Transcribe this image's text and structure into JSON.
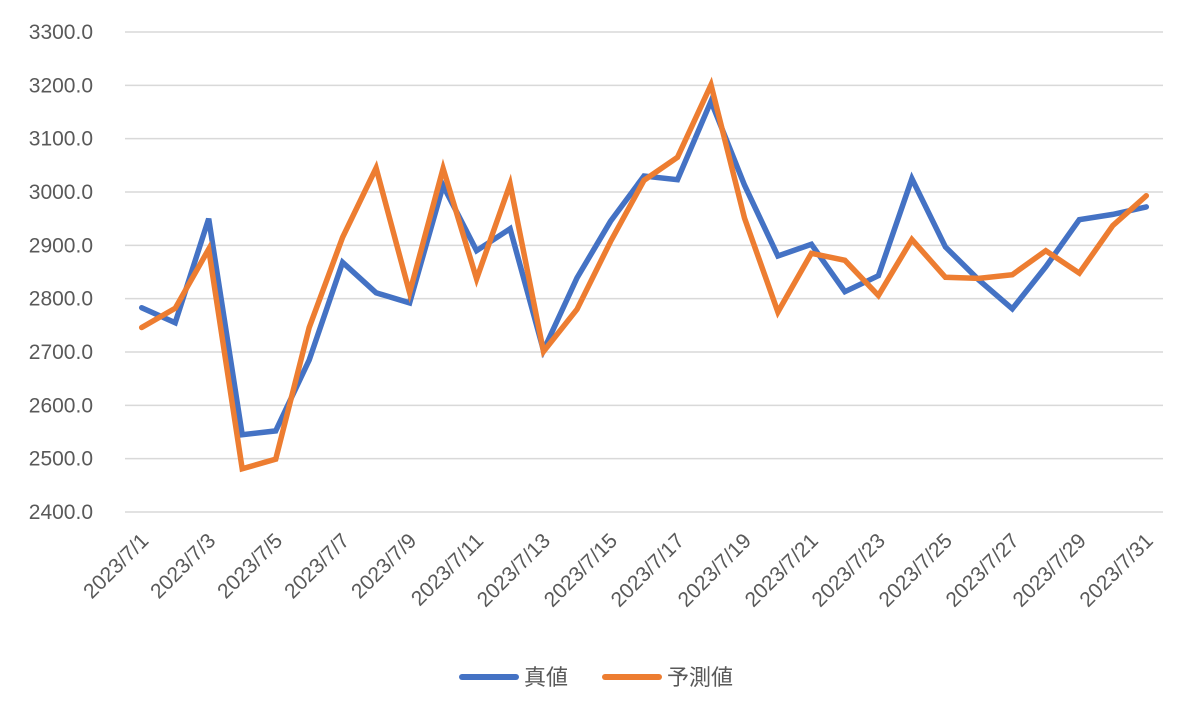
{
  "chart_data": {
    "type": "line",
    "title": "",
    "xlabel": "",
    "ylabel": "",
    "ylim": [
      2400,
      3300
    ],
    "yticks": [
      "2400.0",
      "2500.0",
      "2600.0",
      "2700.0",
      "2800.0",
      "2900.0",
      "3000.0",
      "3100.0",
      "3200.0",
      "3300.0"
    ],
    "categories": [
      "2023/7/1",
      "2023/7/2",
      "2023/7/3",
      "2023/7/4",
      "2023/7/5",
      "2023/7/6",
      "2023/7/7",
      "2023/7/8",
      "2023/7/9",
      "2023/7/10",
      "2023/7/11",
      "2023/7/12",
      "2023/7/13",
      "2023/7/14",
      "2023/7/15",
      "2023/7/16",
      "2023/7/17",
      "2023/7/18",
      "2023/7/19",
      "2023/7/20",
      "2023/7/21",
      "2023/7/22",
      "2023/7/23",
      "2023/7/24",
      "2023/7/25",
      "2023/7/26",
      "2023/7/27",
      "2023/7/28",
      "2023/7/29",
      "2023/7/30",
      "2023/7/31"
    ],
    "xtick_labels": [
      "2023/7/1",
      "2023/7/3",
      "2023/7/5",
      "2023/7/7",
      "2023/7/9",
      "2023/7/11",
      "2023/7/13",
      "2023/7/15",
      "2023/7/17",
      "2023/7/19",
      "2023/7/21",
      "2023/7/23",
      "2023/7/25",
      "2023/7/27",
      "2023/7/29",
      "2023/7/31"
    ],
    "series": [
      {
        "name": "真値",
        "color": "#4472c4",
        "values": [
          2783,
          2755,
          2950,
          2545,
          2552,
          2685,
          2868,
          2811,
          2792,
          3012,
          2890,
          2931,
          2703,
          2839,
          2945,
          3030,
          3023,
          3170,
          3013,
          2880,
          2902,
          2813,
          2843,
          3025,
          2897,
          2835,
          2781,
          2860,
          2948,
          2958,
          2972
        ]
      },
      {
        "name": "予測値",
        "color": "#ed7d31",
        "values": [
          2746,
          2782,
          2893,
          2481,
          2499,
          2746,
          2915,
          3045,
          2811,
          3044,
          2837,
          3015,
          2701,
          2780,
          2907,
          3022,
          3065,
          3201,
          2951,
          2775,
          2885,
          2872,
          2806,
          2911,
          2840,
          2838,
          2845,
          2890,
          2848,
          2937,
          2993
        ]
      }
    ],
    "legend_position": "bottom-center",
    "grid": true
  }
}
